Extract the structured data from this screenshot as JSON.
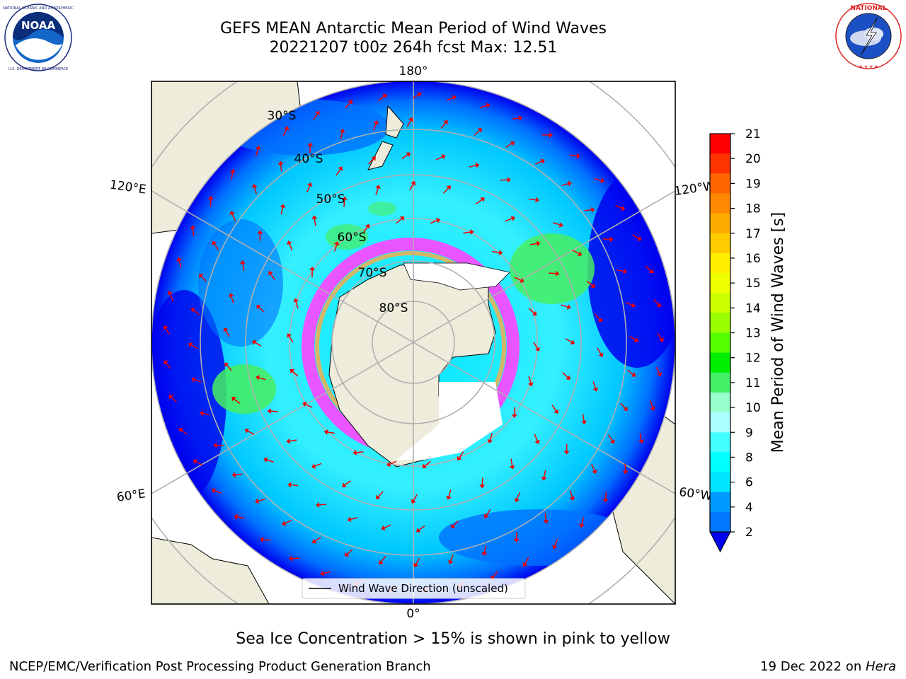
{
  "header": {
    "title_line1": "GEFS MEAN Antarctic Mean Period of Wind Waves",
    "title_line2": "20221207 t00z 264h fcst   Max: 12.51"
  },
  "logos": {
    "left": {
      "name": "NOAA",
      "text": "NOAA",
      "ring_text": "NATIONAL OCEANIC AND ATMOSPHERIC ADMINISTRATION · U.S. DEPARTMENT OF COMMERCE"
    },
    "right": {
      "name": "National Weather Service",
      "ring_text": "NATIONAL WEATHER SERVICE"
    }
  },
  "map": {
    "projection": "south-polar-stereographic",
    "longitude_labels": {
      "top": "180°",
      "bottom": "0°",
      "upper_left": "120°E",
      "upper_right": "120°W",
      "lower_left": "60°E",
      "lower_right": "60°W"
    },
    "latitude_labels": [
      "30°S",
      "40°S",
      "50°S",
      "60°S",
      "70°S",
      "80°S"
    ],
    "legend": "Wind Wave Direction (unscaled)",
    "colors": {
      "land": "#eeecdb",
      "ocean_low": "#0000ee",
      "ocean_mid": "#0070ff",
      "ocean_high": "#00e5ff",
      "wave_green": "#47ee60",
      "sea_ice": "#ff44ff",
      "arrow": "#ee0000"
    }
  },
  "colorbar": {
    "label": "Mean Period of Wind Waves [s]",
    "ticks": [
      "21",
      "20",
      "19",
      "18",
      "17",
      "16",
      "15",
      "14",
      "13",
      "12",
      "11",
      "10",
      "9",
      "8",
      "6",
      "4",
      "2"
    ],
    "colors_top_to_bottom": [
      "#ff0000",
      "#ff3300",
      "#ff6600",
      "#ff8800",
      "#ffaa00",
      "#ffcc00",
      "#ffee00",
      "#eeff00",
      "#ccff00",
      "#99ff00",
      "#55ff00",
      "#00ee00",
      "#44ee66",
      "#99ffcc",
      "#aaffff",
      "#44ffff",
      "#00ffff",
      "#00e5ff",
      "#0099ff",
      "#0077ff"
    ],
    "extend_color": "#0000ee"
  },
  "caption": "Sea Ice Concentration > 15% is shown in pink to yellow",
  "footer": {
    "left": "NCEP/EMC/Verification Post Processing Product Generation Branch",
    "right_prefix": "19 Dec 2022 on ",
    "right_host": "Hera"
  }
}
